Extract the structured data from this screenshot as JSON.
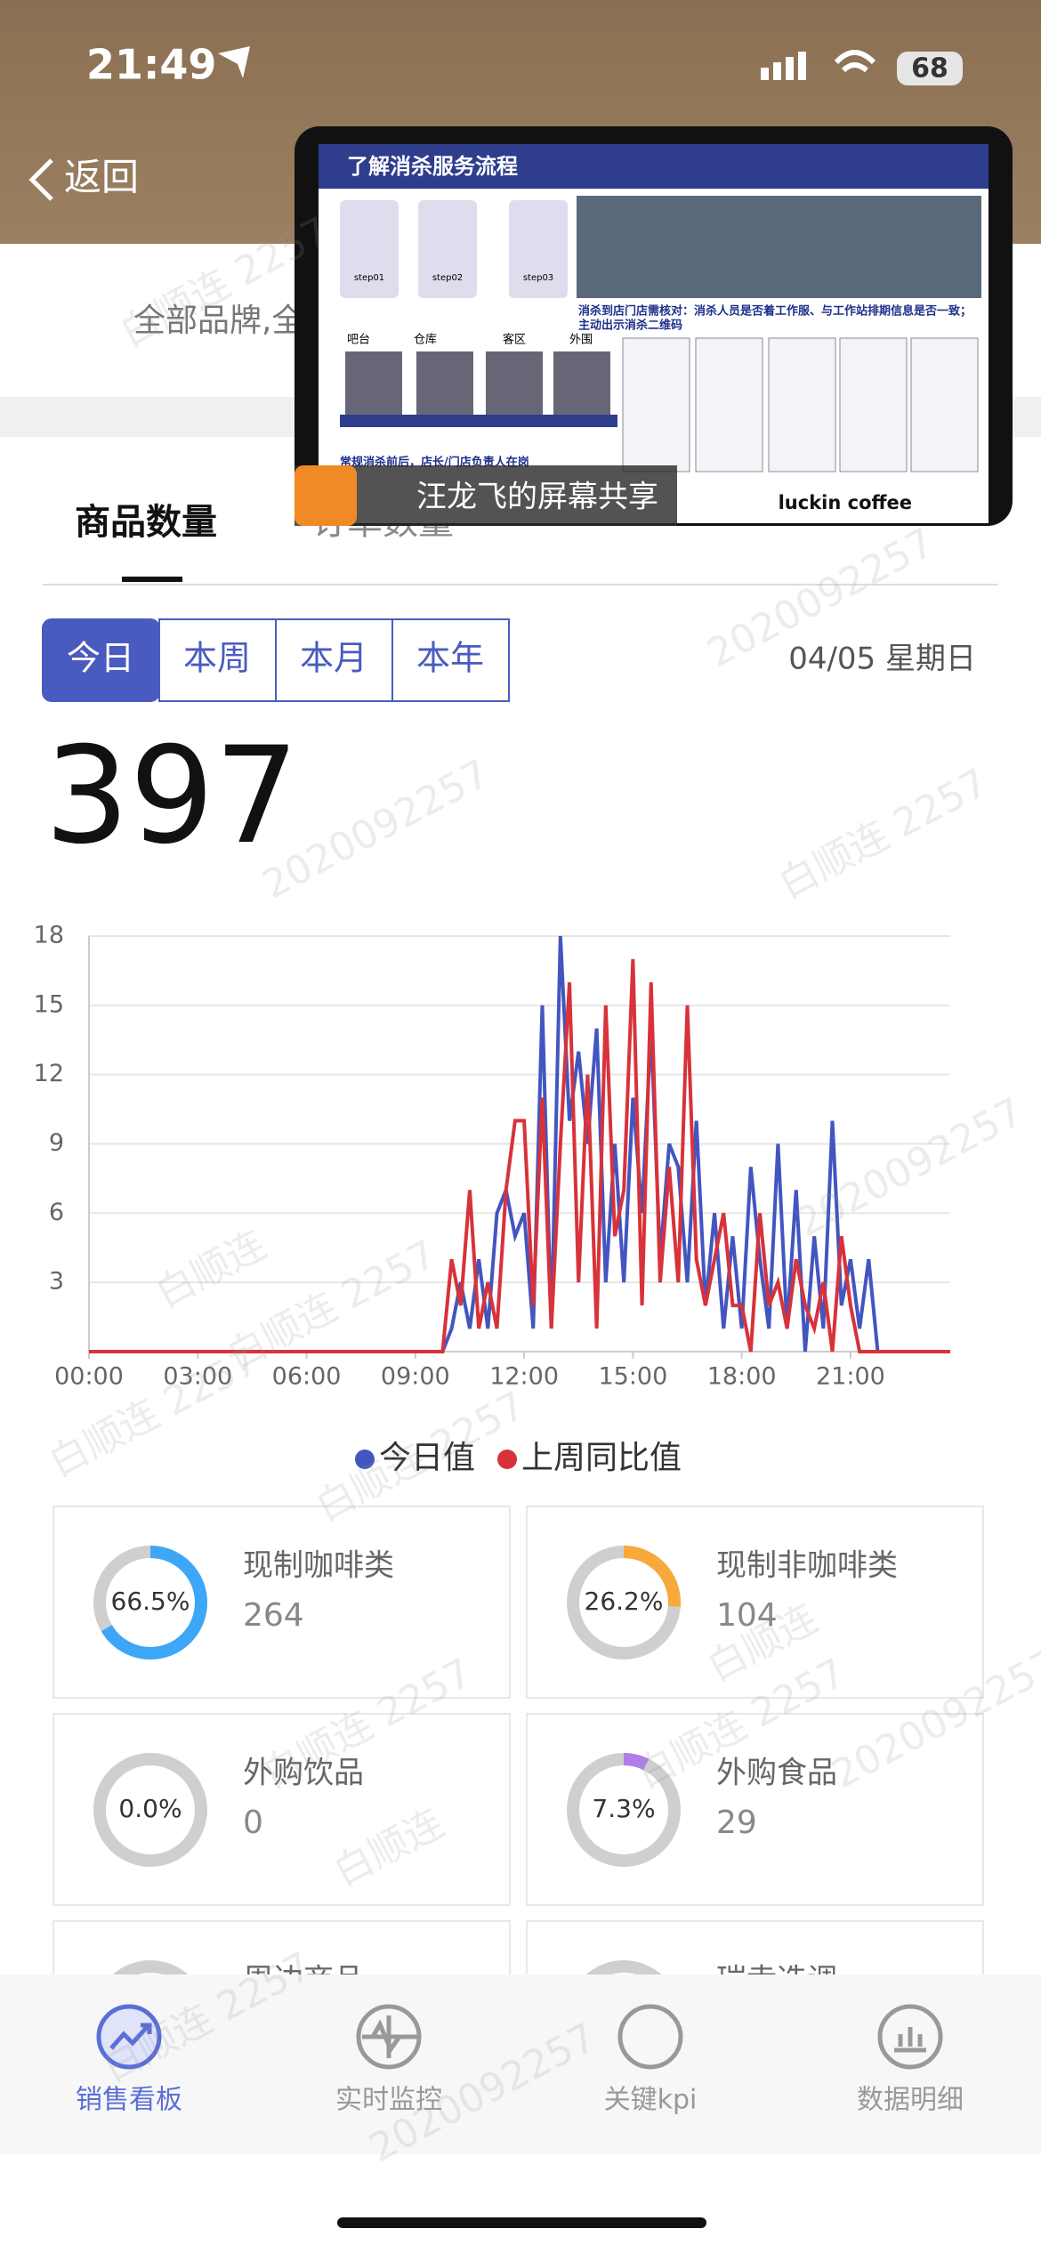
{
  "status_bar": {
    "time": "21:49",
    "battery": "68"
  },
  "nav": {
    "back": "返回",
    "filter": "全部品牌,全"
  },
  "screen_share": {
    "title": "了解消杀服务流程",
    "presenter": "汪龙飞的屏幕共享",
    "brand": "luckin coffee",
    "steps": [
      "step01",
      "step02",
      "step03"
    ],
    "areas": [
      "吧台",
      "仓库",
      "客区",
      "外围"
    ],
    "note": "消杀到店门店需核对：消杀人员是否着工作服、与工作站排期信息是否一致；",
    "note2": "主动出示消杀二维码",
    "footer": "常规消杀前后，店长/门店负责人在岗"
  },
  "tabs": [
    "商品数量",
    "订单数量"
  ],
  "periods": [
    "今日",
    "本周",
    "本月",
    "本年"
  ],
  "date": "04/05 星期日",
  "total": "397",
  "chart_data": {
    "type": "line",
    "x": [
      0,
      9.75,
      10,
      10.25,
      10.5,
      10.75,
      11,
      11.25,
      11.5,
      11.75,
      12,
      12.25,
      12.5,
      12.75,
      13,
      13.25,
      13.5,
      13.75,
      14,
      14.25,
      14.5,
      14.75,
      15,
      15.25,
      15.5,
      15.75,
      16,
      16.25,
      16.5,
      16.75,
      17,
      17.25,
      17.5,
      17.75,
      18,
      18.25,
      18.5,
      18.75,
      19,
      19.25,
      19.5,
      19.75,
      20,
      20.25,
      20.5,
      20.75,
      21,
      21.25,
      21.5,
      21.75,
      23.75
    ],
    "series": [
      {
        "name": "今日值",
        "color": "#4355c0",
        "values": [
          0,
          0,
          1,
          3,
          1,
          4,
          1,
          6,
          7,
          5,
          6,
          1,
          15,
          1,
          18,
          10,
          13,
          9,
          14,
          3,
          9,
          3,
          11,
          6,
          14,
          4,
          9,
          8,
          3,
          10,
          2,
          6,
          1,
          5,
          1,
          8,
          4,
          1,
          9,
          1,
          7,
          0,
          5,
          1,
          10,
          2,
          4,
          1,
          4,
          0,
          0
        ]
      },
      {
        "name": "上周同比值",
        "color": "#d8323a",
        "values": [
          0,
          0,
          4,
          2,
          7,
          1,
          3,
          1,
          7,
          10,
          10,
          2,
          11,
          1,
          9,
          16,
          3,
          12,
          1,
          15,
          5,
          7,
          17,
          2,
          16,
          3,
          8,
          3,
          15,
          4,
          2,
          4,
          6,
          2,
          2,
          0,
          6,
          2,
          3,
          1,
          4,
          2,
          1,
          3,
          0,
          5,
          2,
          0,
          0,
          0,
          0
        ]
      }
    ],
    "xlim": [
      0,
      23.75
    ],
    "xticks": [
      {
        "value": 0,
        "label": "00:00"
      },
      {
        "value": 3,
        "label": "03:00"
      },
      {
        "value": 6,
        "label": "06:00"
      },
      {
        "value": 9,
        "label": "09:00"
      },
      {
        "value": 12,
        "label": "12:00"
      },
      {
        "value": 15,
        "label": "15:00"
      },
      {
        "value": 18,
        "label": "18:00"
      },
      {
        "value": 21,
        "label": "21:00"
      }
    ],
    "ylim": [
      0,
      18
    ],
    "yticks": [
      3,
      6,
      9,
      12,
      15,
      18
    ],
    "grid": true,
    "legend": "bottom"
  },
  "cards": [
    {
      "label": "现制咖啡类",
      "share": {
        "value": 66.5,
        "label": "66.5%"
      },
      "count": "264",
      "color": "#3ea6f7"
    },
    {
      "label": "现制非咖啡类",
      "share": {
        "value": 26.2,
        "label": "26.2%"
      },
      "count": "104",
      "color": "#f7a93c"
    },
    {
      "label": "外购饮品",
      "share": {
        "value": 0.0,
        "label": "0.0%"
      },
      "count": "0",
      "color": "#bbbbbb"
    },
    {
      "label": "外购食品",
      "share": {
        "value": 7.3,
        "label": "7.3%"
      },
      "count": "29",
      "color": "#b07ee8"
    },
    {
      "label": "周边商品"
    },
    {
      "label": "瑞幸选调"
    }
  ],
  "bottom_nav": [
    "销售看板",
    "实时监控",
    "关键kpi",
    "数据明细"
  ],
  "watermarks": [
    "白顺连 2257",
    "2020092257",
    "白顺连"
  ]
}
